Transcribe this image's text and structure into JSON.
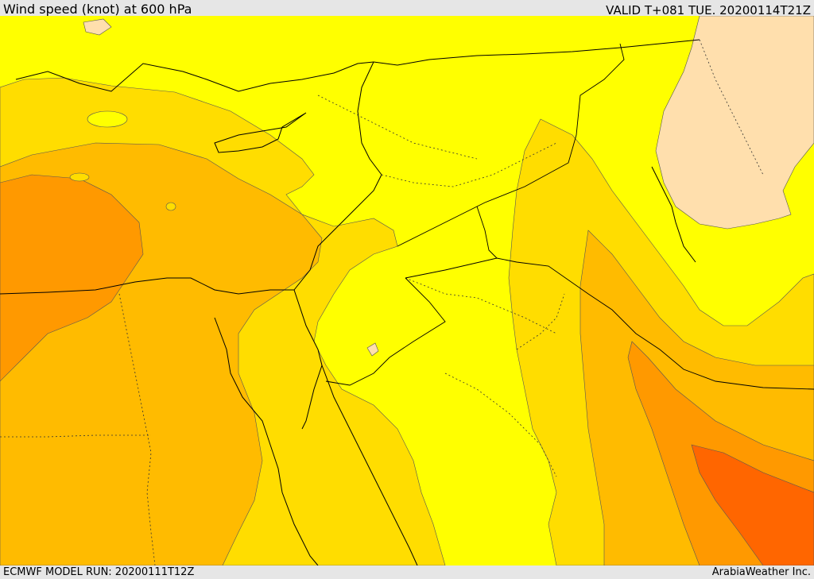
{
  "header": {
    "title": "Wind speed (knot) at 600 hPa",
    "valid": "VALID T+081 TUE. 20200114T21Z"
  },
  "footer": {
    "model_run": "ECMWF MODEL RUN: 20200111T12Z",
    "credit": "ArabiaWeather Inc."
  },
  "colors": {
    "band_lowest": "#ffdfad",
    "band_low": "#ffff00",
    "band_mid": "#ffdd00",
    "band_high": "#ffbb00",
    "band_higher": "#ff9900",
    "band_highest": "#ff6600",
    "coastline": "#000000"
  }
}
